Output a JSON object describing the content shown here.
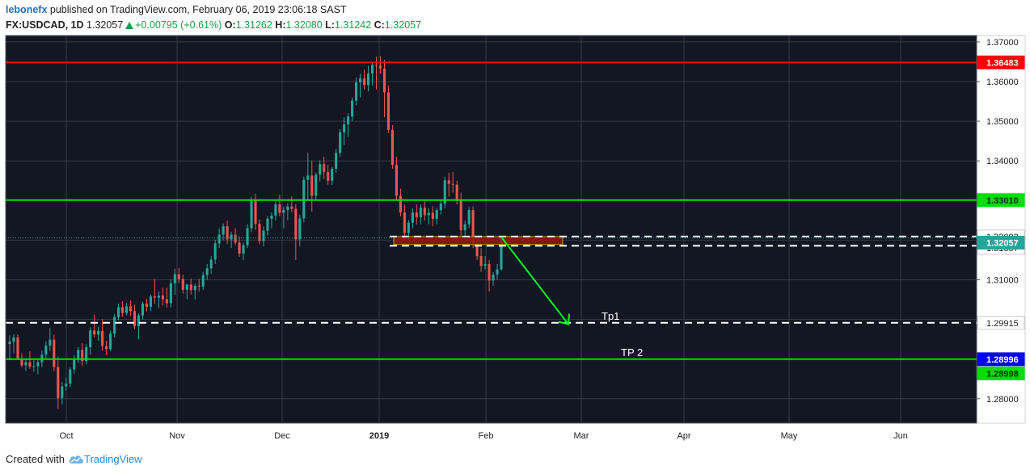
{
  "header": {
    "author": "lebonefx",
    "published_text": "published on TradingView.com, February 06, 2019 23:06:18 SAST",
    "symbol": "FX:USDCAD, 1D",
    "last": "1.32057",
    "change": "+0.00795 (+0.61%)",
    "o_label": "O:",
    "o_value": "1.31262",
    "h_label": "H:",
    "h_value": "1.32080",
    "l_label": "L:",
    "l_value": "1.31242",
    "c_label": "C:",
    "c_value": "1.32057"
  },
  "footer": {
    "created_with": "Created with",
    "brand": "TradingView",
    "logo_icon": "tradingview-cloud-icon"
  },
  "colors": {
    "background": "#131722",
    "grid": "#363a45",
    "up": "#26a69a",
    "down": "#ef5350",
    "red_level": "#ff0000",
    "green_level": "#00dd00",
    "arrow": "#00ff22",
    "zone": "#8b1a1a"
  },
  "chart_data": {
    "type": "candlestick",
    "title": "",
    "xlabel": "",
    "ylabel": "",
    "ylim": [
      1.2755,
      1.3718
    ],
    "x_tick_labels": [
      "Oct",
      "Nov",
      "Dec",
      "2019",
      "Feb",
      "Mar",
      "Apr",
      "May",
      "Jun"
    ],
    "y_tick_labels": [
      "1.37000",
      "1.36000",
      "1.35000",
      "1.34000",
      "1.31000",
      "1.28000"
    ],
    "y_tick_values": [
      1.37,
      1.36,
      1.35,
      1.34,
      1.31,
      1.28
    ],
    "horizontal_levels": [
      {
        "value": 1.36483,
        "label": "1.36483",
        "color": "#ff0000",
        "style": "solid",
        "label_bg": "#ff0000"
      },
      {
        "value": 1.3301,
        "label": "1.33010",
        "color": "#00dd00",
        "style": "solid",
        "label_bg": "#00dd00"
      },
      {
        "value": 1.28998,
        "label": "1.28998",
        "color": "#00dd00",
        "style": "solid",
        "label_bg": "#00dd00"
      },
      {
        "value": 1.32093,
        "label": "1.32093",
        "color": "#ffffff",
        "style": "dashed",
        "label_bg": "#ffffff"
      },
      {
        "value": 1.31857,
        "label": "1.31857",
        "color": "#ffffff",
        "style": "dashed",
        "label_bg": "#ffffff"
      },
      {
        "value": 1.29915,
        "label": "1.29915",
        "color": "#ffffff",
        "style": "dashed",
        "label_bg": "#ffffff"
      }
    ],
    "last_price": {
      "value": 1.32057,
      "label": "1.32057",
      "label_bg": "#26a69a"
    },
    "crosshair_label": {
      "value": 1.28996,
      "label": "1.28996",
      "label_bg": "#0000ff"
    },
    "annotations": [
      {
        "text": "Tp1",
        "at_value": 1.29915
      },
      {
        "text": "TP 2",
        "at_value": 1.28998
      }
    ],
    "zone": {
      "from": 1.3189,
      "to": 1.3209
    },
    "arrow": {
      "start_value": 1.3208,
      "end_value": 1.2988
    },
    "candles": [
      [
        1.2938,
        1.296,
        1.29,
        1.2944
      ],
      [
        1.2944,
        1.2963,
        1.2915,
        1.2955
      ],
      [
        1.2955,
        1.2962,
        1.2899,
        1.2902
      ],
      [
        1.2902,
        1.2914,
        1.2879,
        1.2884
      ],
      [
        1.2884,
        1.2902,
        1.287,
        1.2892
      ],
      [
        1.2892,
        1.292,
        1.2875,
        1.2881
      ],
      [
        1.2881,
        1.2901,
        1.2868,
        1.2882
      ],
      [
        1.2882,
        1.29,
        1.2862,
        1.2892
      ],
      [
        1.2892,
        1.2921,
        1.288,
        1.2911
      ],
      [
        1.2911,
        1.2945,
        1.29,
        1.2934
      ],
      [
        1.2934,
        1.2978,
        1.292,
        1.2949
      ],
      [
        1.2949,
        1.2962,
        1.287,
        1.288
      ],
      [
        1.288,
        1.2906,
        1.2774,
        1.2802
      ],
      [
        1.2802,
        1.2842,
        1.2786,
        1.2831
      ],
      [
        1.2831,
        1.2853,
        1.282,
        1.2838
      ],
      [
        1.2838,
        1.2879,
        1.2829,
        1.2874
      ],
      [
        1.2874,
        1.291,
        1.2863,
        1.29
      ],
      [
        1.29,
        1.293,
        1.289,
        1.2923
      ],
      [
        1.2923,
        1.294,
        1.2883,
        1.2895
      ],
      [
        1.2895,
        1.2937,
        1.2887,
        1.293
      ],
      [
        1.293,
        1.298,
        1.2911,
        1.2972
      ],
      [
        1.2972,
        1.3012,
        1.2955,
        1.2962
      ],
      [
        1.2962,
        1.2982,
        1.2946,
        1.2971
      ],
      [
        1.2971,
        1.3001,
        1.2921,
        1.2933
      ],
      [
        1.2933,
        1.2946,
        1.291,
        1.2925
      ],
      [
        1.2925,
        1.2972,
        1.292,
        1.2964
      ],
      [
        1.2964,
        1.3013,
        1.2955,
        1.3006
      ],
      [
        1.3006,
        1.304,
        1.2998,
        1.3031
      ],
      [
        1.3031,
        1.3046,
        1.3007,
        1.3016
      ],
      [
        1.3016,
        1.3042,
        1.301,
        1.3033
      ],
      [
        1.3033,
        1.3048,
        1.3009,
        1.3021
      ],
      [
        1.3021,
        1.3037,
        1.2976,
        1.2983
      ],
      [
        1.2983,
        1.3015,
        1.295,
        1.301
      ],
      [
        1.301,
        1.3045,
        1.3,
        1.304
      ],
      [
        1.304,
        1.3052,
        1.302,
        1.3032
      ],
      [
        1.3032,
        1.3063,
        1.3021,
        1.3058
      ],
      [
        1.3058,
        1.3102,
        1.304,
        1.3055
      ],
      [
        1.3055,
        1.3071,
        1.3029,
        1.306
      ],
      [
        1.306,
        1.308,
        1.3035,
        1.3051
      ],
      [
        1.3051,
        1.308,
        1.303,
        1.3041
      ],
      [
        1.3041,
        1.3101,
        1.303,
        1.3091
      ],
      [
        1.3091,
        1.3128,
        1.3062,
        1.3114
      ],
      [
        1.3114,
        1.313,
        1.3092,
        1.3102
      ],
      [
        1.3102,
        1.3113,
        1.3065,
        1.3075
      ],
      [
        1.3075,
        1.309,
        1.3051,
        1.3088
      ],
      [
        1.3088,
        1.3103,
        1.3063,
        1.3074
      ],
      [
        1.3074,
        1.309,
        1.305,
        1.3085
      ],
      [
        1.3085,
        1.3102,
        1.307,
        1.3083
      ],
      [
        1.3083,
        1.312,
        1.3075,
        1.3112
      ],
      [
        1.3112,
        1.314,
        1.31,
        1.3129
      ],
      [
        1.3129,
        1.316,
        1.3115,
        1.3151
      ],
      [
        1.3151,
        1.3201,
        1.314,
        1.3192
      ],
      [
        1.3192,
        1.323,
        1.318,
        1.3214
      ],
      [
        1.3214,
        1.3242,
        1.32,
        1.3235
      ],
      [
        1.3235,
        1.3249,
        1.319,
        1.3202
      ],
      [
        1.3202,
        1.3221,
        1.318,
        1.3214
      ],
      [
        1.3214,
        1.323,
        1.3188,
        1.3194
      ],
      [
        1.3194,
        1.321,
        1.3158,
        1.3166
      ],
      [
        1.3166,
        1.3194,
        1.315,
        1.3187
      ],
      [
        1.3187,
        1.324,
        1.318,
        1.323
      ],
      [
        1.323,
        1.331,
        1.322,
        1.3302
      ],
      [
        1.3302,
        1.3317,
        1.3226,
        1.3241
      ],
      [
        1.3241,
        1.3252,
        1.319,
        1.3198
      ],
      [
        1.3198,
        1.3235,
        1.3184,
        1.3224
      ],
      [
        1.3224,
        1.3261,
        1.3212,
        1.3254
      ],
      [
        1.3254,
        1.327,
        1.323,
        1.3262
      ],
      [
        1.3262,
        1.3302,
        1.325,
        1.329
      ],
      [
        1.329,
        1.3315,
        1.326,
        1.3269
      ],
      [
        1.3269,
        1.3284,
        1.323,
        1.3276
      ],
      [
        1.3276,
        1.3293,
        1.325,
        1.3285
      ],
      [
        1.3285,
        1.331,
        1.327,
        1.3279
      ],
      [
        1.3279,
        1.3291,
        1.315,
        1.3202
      ],
      [
        1.3202,
        1.3264,
        1.3185,
        1.3255
      ],
      [
        1.3255,
        1.336,
        1.3245,
        1.3352
      ],
      [
        1.3352,
        1.342,
        1.33,
        1.3363
      ],
      [
        1.3363,
        1.3401,
        1.3272,
        1.3312
      ],
      [
        1.3312,
        1.337,
        1.33,
        1.3365
      ],
      [
        1.3365,
        1.3401,
        1.3348,
        1.3392
      ],
      [
        1.3392,
        1.341,
        1.3354,
        1.3372
      ],
      [
        1.3372,
        1.339,
        1.334,
        1.335
      ],
      [
        1.335,
        1.3385,
        1.3339,
        1.338
      ],
      [
        1.338,
        1.343,
        1.337,
        1.342
      ],
      [
        1.342,
        1.348,
        1.341,
        1.3472
      ],
      [
        1.3472,
        1.351,
        1.344,
        1.3492
      ],
      [
        1.3492,
        1.352,
        1.346,
        1.3512
      ],
      [
        1.3512,
        1.356,
        1.35,
        1.3552
      ],
      [
        1.3552,
        1.361,
        1.354,
        1.3598
      ],
      [
        1.3598,
        1.362,
        1.356,
        1.3608
      ],
      [
        1.3608,
        1.363,
        1.358,
        1.3591
      ],
      [
        1.3591,
        1.364,
        1.3575,
        1.362
      ],
      [
        1.362,
        1.365,
        1.359,
        1.3642
      ],
      [
        1.3642,
        1.3662,
        1.358,
        1.364
      ],
      [
        1.364,
        1.3664,
        1.362,
        1.3633
      ],
      [
        1.3633,
        1.3655,
        1.351,
        1.3573
      ],
      [
        1.3573,
        1.359,
        1.347,
        1.3478
      ],
      [
        1.3478,
        1.349,
        1.338,
        1.339
      ],
      [
        1.339,
        1.341,
        1.33,
        1.3312
      ],
      [
        1.3312,
        1.333,
        1.326,
        1.327
      ],
      [
        1.327,
        1.329,
        1.32,
        1.3218
      ],
      [
        1.3218,
        1.3251,
        1.32,
        1.3244
      ],
      [
        1.3244,
        1.328,
        1.323,
        1.327
      ],
      [
        1.327,
        1.329,
        1.324,
        1.3258
      ],
      [
        1.3258,
        1.329,
        1.324,
        1.3282
      ],
      [
        1.3282,
        1.33,
        1.325,
        1.3263
      ],
      [
        1.3263,
        1.3281,
        1.324,
        1.3269
      ],
      [
        1.3269,
        1.3285,
        1.3235,
        1.3254
      ],
      [
        1.3254,
        1.3281,
        1.324,
        1.3276
      ],
      [
        1.3276,
        1.33,
        1.3265,
        1.3292
      ],
      [
        1.3292,
        1.336,
        1.328,
        1.3351
      ],
      [
        1.3351,
        1.337,
        1.331,
        1.3342
      ],
      [
        1.3342,
        1.3372,
        1.332,
        1.334
      ],
      [
        1.334,
        1.335,
        1.329,
        1.3302
      ],
      [
        1.3302,
        1.332,
        1.321,
        1.3225
      ],
      [
        1.3225,
        1.325,
        1.321,
        1.324
      ],
      [
        1.324,
        1.3284,
        1.323,
        1.3276
      ],
      [
        1.3276,
        1.3285,
        1.318,
        1.319
      ],
      [
        1.319,
        1.321,
        1.315,
        1.316
      ],
      [
        1.316,
        1.318,
        1.312,
        1.3135
      ],
      [
        1.3135,
        1.316,
        1.3126,
        1.314
      ],
      [
        1.314,
        1.315,
        1.307,
        1.3098
      ],
      [
        1.3098,
        1.312,
        1.3085,
        1.3113
      ],
      [
        1.3113,
        1.314,
        1.31,
        1.3126
      ],
      [
        1.3126,
        1.3208,
        1.3124,
        1.3206
      ]
    ]
  }
}
